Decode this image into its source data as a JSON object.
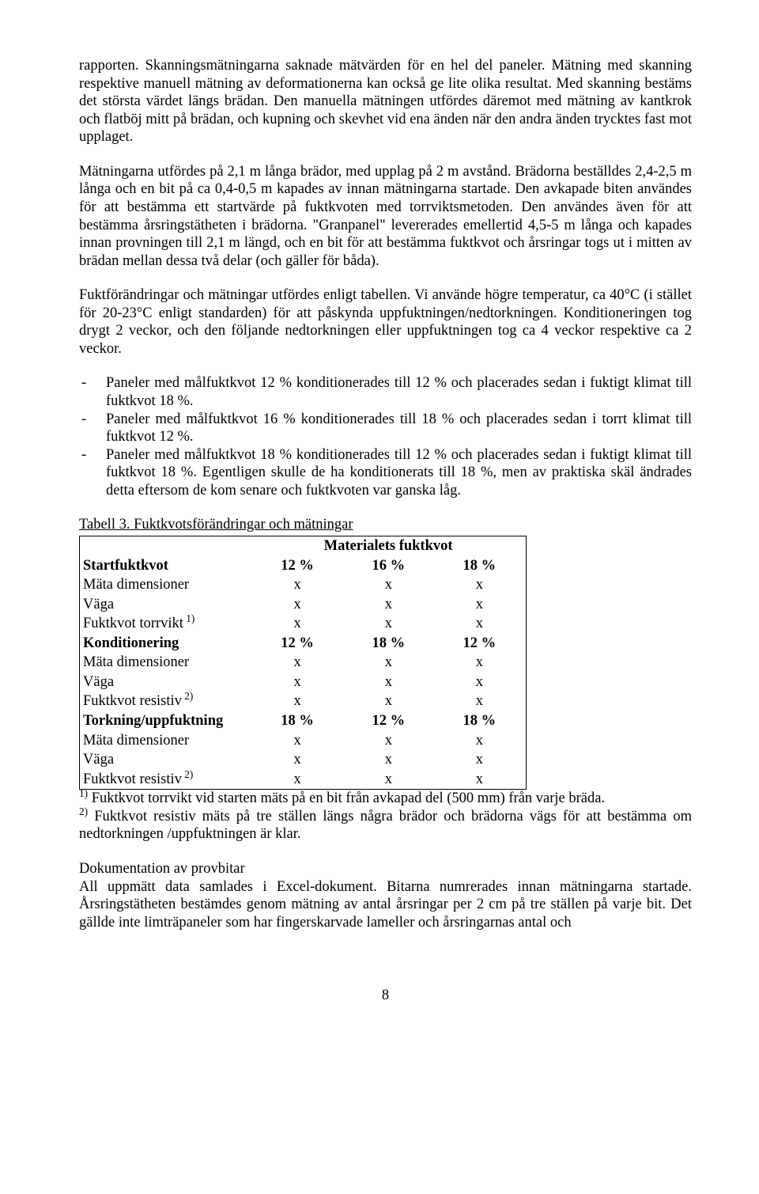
{
  "paragraphs": {
    "p1": "rapporten. Skanningsmätningarna saknade mätvärden för en hel del paneler. Mätning med skanning respektive manuell mätning av deformationerna kan också ge lite olika resultat. Med skanning bestäms det största värdet längs brädan. Den manuella mätningen utfördes däremot med mätning av kantkrok och flatböj mitt på brädan, och kupning och skevhet vid ena änden när den andra änden trycktes fast mot upplaget.",
    "p2": "Mätningarna utfördes på 2,1 m långa brädor, med upplag på 2 m avstånd. Brädorna beställdes 2,4-2,5 m långa och en bit på ca 0,4-0,5 m kapades av innan mätningarna startade. Den avkapade biten användes för att bestämma ett startvärde på fuktkvoten med torrviktsmetoden. Den användes även för att bestämma årsringstätheten i brädorna. \"Granpanel\" levererades emellertid 4,5-5 m långa och kapades innan provningen till 2,1 m längd, och en bit för att bestämma fuktkvot och årsringar togs ut i mitten av brädan mellan dessa två delar (och gäller för båda).",
    "p3": "Fuktförändringar och mätningar utfördes enligt tabellen. Vi använde högre temperatur, ca 40°C (i stället för 20-23°C enligt standarden) för att påskynda uppfuktningen/nedtorkningen. Konditioneringen tog drygt 2 veckor, och den följande nedtorkningen eller uppfuktningen tog ca 4 veckor respektive ca 2 veckor.",
    "li1": "Paneler med målfuktkvot 12 % konditionerades till 12 % och placerades sedan i fuktigt klimat till fuktkvot 18 %.",
    "li2": "Paneler med målfuktkvot 16 % konditionerades till 18 % och placerades sedan i torrt klimat till fuktkvot 12 %.",
    "li3": "Paneler med målfuktkvot 18 % konditionerades till 12 % och placerades sedan i fuktigt klimat till fuktkvot 18 %. Egentligen skulle de ha konditionerats till 18 %, men av praktiska skäl ändrades detta eftersom de kom senare och fuktkvoten var ganska låg.",
    "doc_heading": "Dokumentation av provbitar",
    "p4": "All uppmätt data samlades i Excel-dokument. Bitarna numrerades innan mätningarna startade. Årsringstätheten bestämdes genom mätning av antal årsringar per 2 cm på tre ställen på varje bit. Det gällde inte limträpaneler som har fingerskarvade lameller och årsringarnas antal och"
  },
  "table": {
    "caption": "Tabell 3. Fuktkvotsförändringar och mätningar",
    "sup_header": "Materialets fuktkvot",
    "rows": [
      {
        "label": "Startfuktkvot",
        "bold": true,
        "c1": "12 %",
        "c2": "16 %",
        "c3": "18 %",
        "vbold": true
      },
      {
        "label": "Mäta dimensioner",
        "c1": "x",
        "c2": "x",
        "c3": "x"
      },
      {
        "label": "Väga",
        "c1": "x",
        "c2": "x",
        "c3": "x"
      },
      {
        "label": "Fuktkvot torrvikt",
        "sup": "1)",
        "c1": "x",
        "c2": "x",
        "c3": "x"
      },
      {
        "label": "Konditionering",
        "bold": true,
        "c1": "12 %",
        "c2": "18 %",
        "c3": "12 %",
        "vbold": true
      },
      {
        "label": "Mäta dimensioner",
        "c1": "x",
        "c2": "x",
        "c3": "x"
      },
      {
        "label": "Väga",
        "c1": "x",
        "c2": "x",
        "c3": "x"
      },
      {
        "label": "Fuktkvot resistiv",
        "sup": "2)",
        "c1": "x",
        "c2": "x",
        "c3": "x"
      },
      {
        "label": "Torkning/uppfuktning",
        "bold": true,
        "c1": "18 %",
        "c2": "12 %",
        "c3": "18 %",
        "vbold": true
      },
      {
        "label": "Mäta dimensioner",
        "c1": "x",
        "c2": "x",
        "c3": "x"
      },
      {
        "label": "Väga",
        "c1": "x",
        "c2": "x",
        "c3": "x"
      },
      {
        "label": "Fuktkvot resistiv",
        "sup": "2)",
        "c1": "x",
        "c2": "x",
        "c3": "x"
      }
    ],
    "footnote1_pre": "1)",
    "footnote1": " Fuktkvot torrvikt vid starten mäts på en bit från avkapad del (500 mm) från varje bräda.",
    "footnote2_pre": "2)",
    "footnote2": " Fuktkvot resistiv mäts på tre ställen längs några brädor och brädorna vägs för att bestämma om nedtorkningen /uppfuktningen är klar."
  },
  "page_number": "8"
}
